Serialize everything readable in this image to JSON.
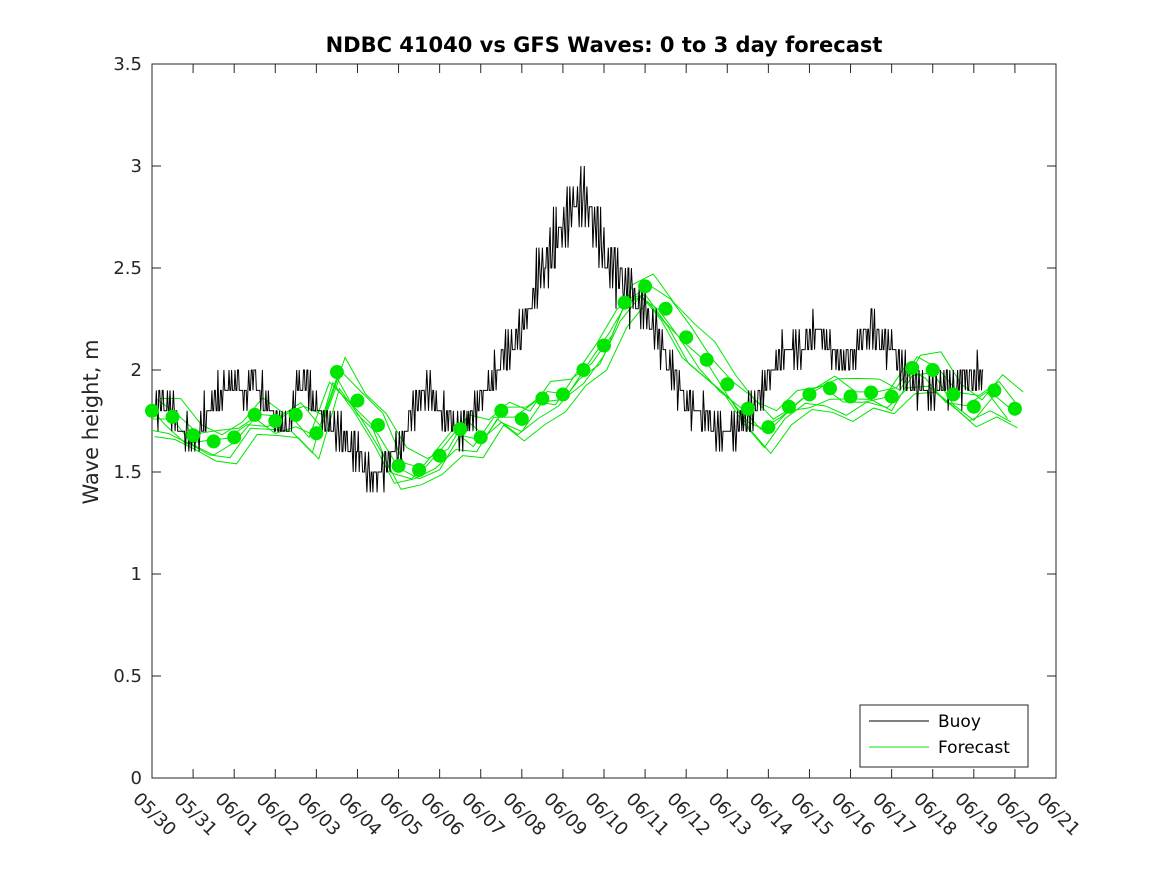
{
  "chart_data": {
    "type": "line",
    "title": "NDBC 41040 vs GFS Waves: 0 to 3 day forecast",
    "xlabel": "",
    "ylabel": "Wave height, m",
    "xlim": [
      0,
      22
    ],
    "ylim": [
      0,
      3.5
    ],
    "yticks": [
      "0",
      "0.5",
      "1",
      "1.5",
      "2",
      "2.5",
      "3",
      "3.5"
    ],
    "xticks": [
      "05/30",
      "05/31",
      "06/01",
      "06/02",
      "06/03",
      "06/04",
      "06/05",
      "06/06",
      "06/07",
      "06/08",
      "06/09",
      "06/10",
      "06/11",
      "06/12",
      "06/13",
      "06/14",
      "06/15",
      "06/16",
      "06/17",
      "06/18",
      "06/19",
      "06/20",
      "06/21"
    ],
    "grid": false,
    "legend_position": "bottom-right",
    "legend": [
      "Buoy",
      "Forecast"
    ],
    "colors": {
      "buoy": "#000000",
      "forecast": "#00e600",
      "axis": "#262626"
    },
    "series": [
      {
        "name": "Buoy",
        "kind": "line",
        "x": [
          0,
          0.25,
          0.5,
          0.75,
          1,
          1.25,
          1.5,
          1.75,
          2,
          2.25,
          2.5,
          2.75,
          3,
          3.25,
          3.5,
          3.75,
          4,
          4.25,
          4.5,
          4.75,
          5,
          5.25,
          5.5,
          5.75,
          6,
          6.25,
          6.5,
          6.75,
          7,
          7.25,
          7.5,
          7.75,
          8,
          8.25,
          8.5,
          8.75,
          9,
          9.25,
          9.5,
          9.75,
          10,
          10.25,
          10.5,
          10.75,
          11,
          11.25,
          11.5,
          11.75,
          12,
          12.25,
          12.5,
          12.75,
          13,
          13.25,
          13.5,
          13.75,
          14,
          14.25,
          14.5,
          14.75,
          15,
          15.25,
          15.5,
          15.75,
          16,
          16.25,
          16.5,
          16.75,
          17,
          17.25,
          17.5,
          17.75,
          18,
          18.25,
          18.5,
          18.75,
          19,
          19.25,
          19.5,
          19.75,
          20,
          20.25
        ],
        "y": [
          1.8,
          1.85,
          1.8,
          1.7,
          1.65,
          1.75,
          1.85,
          1.9,
          1.95,
          1.9,
          1.95,
          1.85,
          1.75,
          1.7,
          1.9,
          1.95,
          1.8,
          1.75,
          1.7,
          1.65,
          1.6,
          1.5,
          1.45,
          1.55,
          1.6,
          1.75,
          1.85,
          1.9,
          1.8,
          1.75,
          1.7,
          1.75,
          1.85,
          1.95,
          2.05,
          2.1,
          2.2,
          2.35,
          2.5,
          2.6,
          2.7,
          2.8,
          2.85,
          2.75,
          2.55,
          2.5,
          2.45,
          2.35,
          2.3,
          2.2,
          2.05,
          1.95,
          1.85,
          1.8,
          1.75,
          1.7,
          1.68,
          1.72,
          1.78,
          1.85,
          1.95,
          2.05,
          2.1,
          2.1,
          2.15,
          2.2,
          2.1,
          2.05,
          2.05,
          2.15,
          2.2,
          2.15,
          2.1,
          2.0,
          1.95,
          1.9,
          1.9,
          1.95,
          1.9,
          1.95,
          1.95,
          2.0
        ]
      },
      {
        "name": "Forecast",
        "kind": "markers",
        "x": [
          0,
          0.5,
          1,
          1.5,
          2,
          2.5,
          3,
          3.5,
          4,
          4.5,
          5,
          5.5,
          6,
          6.5,
          7,
          7.5,
          8,
          8.5,
          9,
          9.5,
          10,
          10.5,
          11,
          11.5,
          12,
          12.5,
          13,
          13.5,
          14,
          14.5,
          15,
          15.5,
          16,
          16.5,
          17,
          17.5,
          18,
          18.5,
          19,
          19.5,
          20,
          20.5,
          21
        ],
        "y": [
          1.8,
          1.77,
          1.68,
          1.65,
          1.67,
          1.78,
          1.75,
          1.78,
          1.69,
          1.99,
          1.85,
          1.73,
          1.53,
          1.51,
          1.58,
          1.71,
          1.67,
          1.8,
          1.76,
          1.86,
          1.88,
          2.0,
          2.12,
          2.33,
          2.41,
          2.3,
          2.16,
          2.05,
          1.93,
          1.81,
          1.72,
          1.82,
          1.88,
          1.91,
          1.87,
          1.89,
          1.87,
          2.01,
          2.0,
          1.88,
          1.82,
          1.9,
          1.81
        ]
      }
    ]
  }
}
